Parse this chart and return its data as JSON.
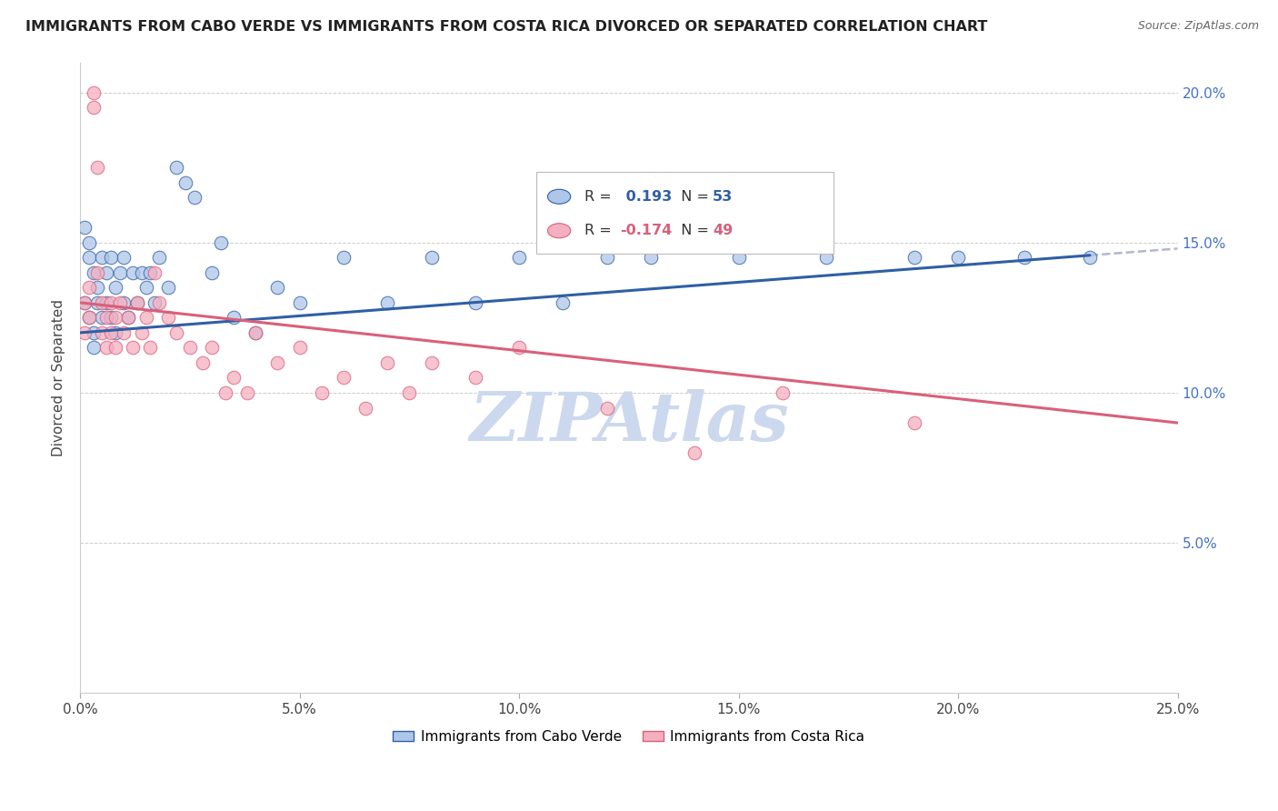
{
  "title": "IMMIGRANTS FROM CABO VERDE VS IMMIGRANTS FROM COSTA RICA DIVORCED OR SEPARATED CORRELATION CHART",
  "source": "Source: ZipAtlas.com",
  "ylabel": "Divorced or Separated",
  "xmin": 0.0,
  "xmax": 0.25,
  "ymin": 0.0,
  "ymax": 0.21,
  "legend1_label": "Immigrants from Cabo Verde",
  "legend2_label": "Immigrants from Costa Rica",
  "R_blue": 0.193,
  "N_blue": 53,
  "R_pink": -0.174,
  "N_pink": 49,
  "blue_color": "#aec6e8",
  "pink_color": "#f4afc0",
  "blue_line_color": "#2f5fa5",
  "pink_line_color": "#d9607a",
  "blue_dash_color": "#b0b8cc",
  "watermark_color": "#ccd8ee",
  "axis_color": "#4472c4",
  "grid_color": "#cccccc",
  "cabo_verde_x": [
    0.001,
    0.001,
    0.002,
    0.002,
    0.002,
    0.003,
    0.003,
    0.003,
    0.004,
    0.004,
    0.005,
    0.005,
    0.006,
    0.006,
    0.007,
    0.007,
    0.008,
    0.008,
    0.009,
    0.01,
    0.01,
    0.011,
    0.012,
    0.013,
    0.014,
    0.015,
    0.016,
    0.017,
    0.018,
    0.02,
    0.022,
    0.024,
    0.026,
    0.03,
    0.032,
    0.035,
    0.04,
    0.045,
    0.05,
    0.06,
    0.07,
    0.08,
    0.09,
    0.1,
    0.11,
    0.12,
    0.13,
    0.15,
    0.17,
    0.19,
    0.2,
    0.215,
    0.23
  ],
  "cabo_verde_y": [
    0.155,
    0.13,
    0.15,
    0.145,
    0.125,
    0.14,
    0.12,
    0.115,
    0.135,
    0.13,
    0.145,
    0.125,
    0.14,
    0.13,
    0.145,
    0.125,
    0.135,
    0.12,
    0.14,
    0.13,
    0.145,
    0.125,
    0.14,
    0.13,
    0.14,
    0.135,
    0.14,
    0.13,
    0.145,
    0.135,
    0.175,
    0.17,
    0.165,
    0.14,
    0.15,
    0.125,
    0.12,
    0.135,
    0.13,
    0.145,
    0.13,
    0.145,
    0.13,
    0.145,
    0.13,
    0.145,
    0.145,
    0.145,
    0.145,
    0.145,
    0.145,
    0.145,
    0.145
  ],
  "costa_rica_x": [
    0.001,
    0.001,
    0.002,
    0.002,
    0.003,
    0.003,
    0.004,
    0.004,
    0.005,
    0.005,
    0.006,
    0.006,
    0.007,
    0.007,
    0.008,
    0.008,
    0.009,
    0.01,
    0.011,
    0.012,
    0.013,
    0.014,
    0.015,
    0.016,
    0.017,
    0.018,
    0.02,
    0.022,
    0.025,
    0.028,
    0.03,
    0.033,
    0.035,
    0.038,
    0.04,
    0.045,
    0.05,
    0.055,
    0.06,
    0.065,
    0.07,
    0.075,
    0.08,
    0.09,
    0.1,
    0.12,
    0.14,
    0.16,
    0.19
  ],
  "costa_rica_y": [
    0.13,
    0.12,
    0.135,
    0.125,
    0.195,
    0.2,
    0.175,
    0.14,
    0.13,
    0.12,
    0.115,
    0.125,
    0.13,
    0.12,
    0.125,
    0.115,
    0.13,
    0.12,
    0.125,
    0.115,
    0.13,
    0.12,
    0.125,
    0.115,
    0.14,
    0.13,
    0.125,
    0.12,
    0.115,
    0.11,
    0.115,
    0.1,
    0.105,
    0.1,
    0.12,
    0.11,
    0.115,
    0.1,
    0.105,
    0.095,
    0.11,
    0.1,
    0.11,
    0.105,
    0.115,
    0.095,
    0.08,
    0.1,
    0.09
  ]
}
